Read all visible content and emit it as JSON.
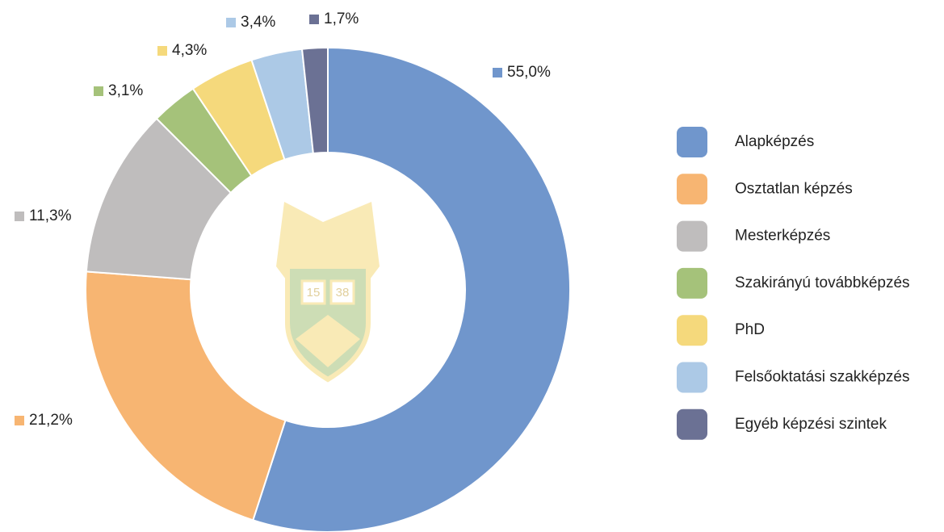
{
  "chart_data": {
    "type": "donut",
    "categories": [
      "Alapképzés",
      "Osztatlan képzés",
      "Mesterképzés",
      "Szakirányú továbbképzés",
      "PhD",
      "Felsőoktatási szakképzés",
      "Egyéb képzési szintek"
    ],
    "values": [
      55.0,
      21.2,
      11.3,
      3.1,
      4.3,
      3.4,
      1.7
    ],
    "value_labels": [
      "55,0%",
      "21,2%",
      "11,3%",
      "3,1%",
      "4,3%",
      "3,4%",
      "1,7%"
    ],
    "colors": [
      "#7096cc",
      "#f7b572",
      "#bfbdbd",
      "#a5c27a",
      "#f5d97c",
      "#acc9e6",
      "#6b7194"
    ],
    "legend": "right",
    "logo": {
      "left": "15",
      "right": "38"
    }
  }
}
